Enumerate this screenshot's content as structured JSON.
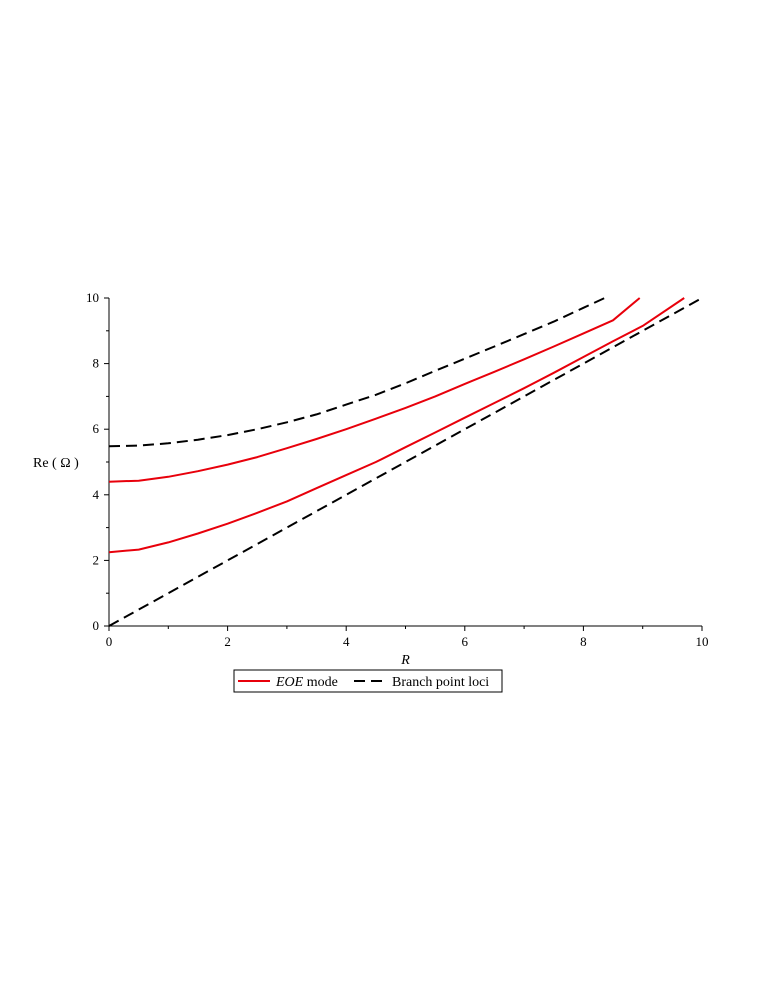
{
  "chart_data": {
    "type": "line",
    "xlabel": "R",
    "ylabel": "Re ( Ω )",
    "xlim": [
      0,
      10
    ],
    "ylim": [
      0,
      10
    ],
    "xticks": [
      0,
      2,
      4,
      6,
      8,
      10
    ],
    "yticks": [
      0,
      2,
      4,
      6,
      8,
      10
    ],
    "grid": false,
    "legend_position": "bottom-center",
    "legend": [
      {
        "italic": "EOE",
        "rest": " mode",
        "style": "solid",
        "color": "#e8000b"
      },
      {
        "italic": "",
        "rest": "Branch point loci",
        "style": "dashed",
        "color": "#000000"
      }
    ],
    "series": [
      {
        "style": "dashed",
        "color": "#000000",
        "x": [
          0,
          0.5,
          1,
          1.5,
          2,
          2.5,
          3,
          3.5,
          4,
          4.5,
          5,
          5.5,
          6,
          6.5,
          7,
          7.5,
          8,
          8.36
        ],
        "y": [
          5.48,
          5.5,
          5.57,
          5.68,
          5.82,
          6.0,
          6.21,
          6.45,
          6.75,
          7.05,
          7.4,
          7.78,
          8.15,
          8.52,
          8.9,
          9.28,
          9.7,
          10.0
        ]
      },
      {
        "style": "dashed",
        "color": "#000000",
        "x": [
          0,
          10
        ],
        "y": [
          0,
          10
        ]
      },
      {
        "style": "solid",
        "color": "#e8000b",
        "x": [
          0,
          0.5,
          1,
          1.5,
          2,
          2.5,
          3,
          3.5,
          4,
          4.5,
          5,
          5.5,
          6,
          6.5,
          7,
          7.5,
          8,
          8.5,
          8.95
        ],
        "y": [
          4.4,
          4.43,
          4.55,
          4.72,
          4.92,
          5.15,
          5.42,
          5.7,
          6.0,
          6.32,
          6.65,
          7.0,
          7.38,
          7.75,
          8.13,
          8.52,
          8.92,
          9.32,
          10.0
        ]
      },
      {
        "style": "solid",
        "color": "#e8000b",
        "x": [
          0,
          0.5,
          1,
          1.5,
          2,
          2.5,
          3,
          3.5,
          4,
          4.5,
          5,
          5.5,
          6,
          6.5,
          7,
          7.5,
          8,
          8.5,
          9,
          9.7
        ],
        "y": [
          2.25,
          2.33,
          2.55,
          2.82,
          3.12,
          3.45,
          3.8,
          4.2,
          4.6,
          5.0,
          5.45,
          5.9,
          6.35,
          6.8,
          7.25,
          7.72,
          8.2,
          8.68,
          9.15,
          10.0
        ]
      }
    ]
  }
}
